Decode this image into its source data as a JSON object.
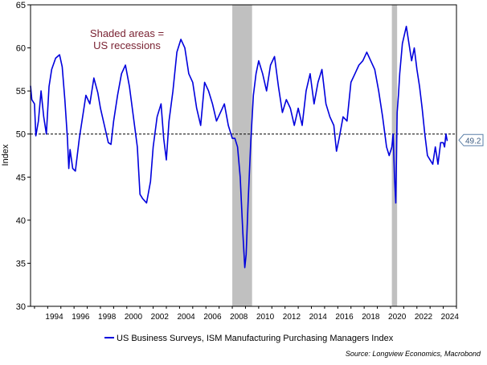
{
  "chart_data": {
    "type": "line",
    "title": "",
    "xlabel": "",
    "ylabel": "Index",
    "xlim": [
      1992.7,
      2025.0
    ],
    "ylim": [
      30,
      65
    ],
    "y_ticks": [
      30,
      35,
      40,
      45,
      50,
      55,
      60,
      65
    ],
    "x_ticks": [
      1994,
      1996,
      1998,
      2000,
      2002,
      2004,
      2006,
      2008,
      2010,
      2012,
      2014,
      2016,
      2018,
      2020,
      2022,
      2024
    ],
    "reference_line": {
      "value": 50,
      "style": "dashed"
    },
    "last_value_label": "49.2",
    "annotation": [
      "Shaded areas =",
      "US recessions"
    ],
    "recessions": [
      {
        "start": 2008.0,
        "end": 2009.5
      },
      {
        "start": 2020.1,
        "end": 2020.5
      }
    ],
    "legend": {
      "position": "bottom-center",
      "entries": [
        "US Business Surveys, ISM Manufacturing Purchasing Managers Index"
      ]
    },
    "source": "Source: Longview Economics, Macrobond",
    "series": [
      {
        "name": "US Business Surveys, ISM Manufacturing Purchasing Managers Index",
        "color": "#0000dd",
        "x": [
          1992.7,
          1992.8,
          1993.0,
          1993.1,
          1993.3,
          1993.5,
          1993.7,
          1993.9,
          1994.1,
          1994.3,
          1994.6,
          1994.9,
          1995.1,
          1995.3,
          1995.5,
          1995.6,
          1995.7,
          1995.9,
          1996.1,
          1996.4,
          1996.6,
          1996.9,
          1997.2,
          1997.5,
          1997.8,
          1998.0,
          1998.3,
          1998.6,
          1998.8,
          1999.0,
          1999.3,
          1999.6,
          1999.9,
          2000.2,
          2000.5,
          2000.8,
          2001.0,
          2001.2,
          2001.5,
          2001.8,
          2002.0,
          2002.3,
          2002.6,
          2002.8,
          2003.0,
          2003.2,
          2003.5,
          2003.8,
          2004.1,
          2004.4,
          2004.7,
          2005.0,
          2005.3,
          2005.6,
          2005.9,
          2006.2,
          2006.5,
          2006.8,
          2007.1,
          2007.4,
          2007.7,
          2008.0,
          2008.2,
          2008.4,
          2008.6,
          2008.8,
          2008.95,
          2009.05,
          2009.2,
          2009.4,
          2009.6,
          2009.8,
          2010.0,
          2010.3,
          2010.6,
          2010.9,
          2011.2,
          2011.5,
          2011.8,
          2012.1,
          2012.4,
          2012.7,
          2013.0,
          2013.3,
          2013.6,
          2013.9,
          2014.2,
          2014.5,
          2014.8,
          2015.1,
          2015.4,
          2015.7,
          2015.9,
          2016.1,
          2016.4,
          2016.7,
          2017.0,
          2017.3,
          2017.6,
          2017.9,
          2018.2,
          2018.5,
          2018.8,
          2019.1,
          2019.4,
          2019.7,
          2019.9,
          2020.1,
          2020.2,
          2020.3,
          2020.4,
          2020.5,
          2020.6,
          2020.7,
          2020.9,
          2021.2,
          2021.4,
          2021.6,
          2021.8,
          2022.0,
          2022.2,
          2022.4,
          2022.6,
          2022.8,
          2023.0,
          2023.2,
          2023.4,
          2023.6,
          2023.8,
          2024.0,
          2024.1,
          2024.2,
          2024.3
        ],
        "values": [
          55.6,
          54.0,
          53.5,
          49.8,
          51.5,
          55.0,
          52.0,
          50.0,
          55.5,
          57.5,
          58.8,
          59.2,
          57.8,
          54.0,
          49.5,
          46.0,
          48.2,
          46.0,
          45.7,
          49.5,
          51.5,
          54.5,
          53.5,
          56.5,
          54.8,
          53.0,
          51.0,
          49.0,
          48.8,
          51.5,
          54.5,
          57.0,
          58.0,
          55.5,
          52.0,
          48.5,
          43.0,
          42.5,
          42.0,
          44.5,
          48.5,
          52.0,
          53.5,
          49.5,
          47.0,
          51.5,
          55.0,
          59.5,
          61.0,
          60.0,
          57.0,
          56.0,
          53.0,
          51.0,
          56.0,
          55.0,
          53.5,
          51.5,
          52.5,
          53.5,
          51.0,
          49.5,
          49.5,
          48.5,
          45.0,
          38.5,
          34.5,
          36.0,
          42.0,
          49.0,
          54.5,
          57.0,
          58.5,
          57.0,
          55.0,
          58.0,
          59.0,
          55.5,
          52.5,
          54.0,
          53.0,
          51.0,
          53.0,
          51.0,
          55.0,
          57.0,
          53.5,
          56.0,
          57.5,
          53.5,
          52.0,
          51.0,
          48.0,
          49.5,
          52.0,
          51.5,
          56.0,
          57.0,
          58.0,
          58.5,
          59.5,
          58.5,
          57.5,
          55.0,
          52.0,
          48.5,
          47.5,
          48.5,
          50.0,
          45.0,
          42.0,
          52.5,
          54.5,
          57.0,
          60.5,
          62.5,
          60.5,
          58.5,
          60.0,
          57.5,
          55.5,
          53.0,
          50.0,
          47.5,
          47.0,
          46.5,
          48.5,
          46.5,
          49.0,
          49.0,
          48.5,
          50.0,
          49.2
        ]
      }
    ]
  }
}
